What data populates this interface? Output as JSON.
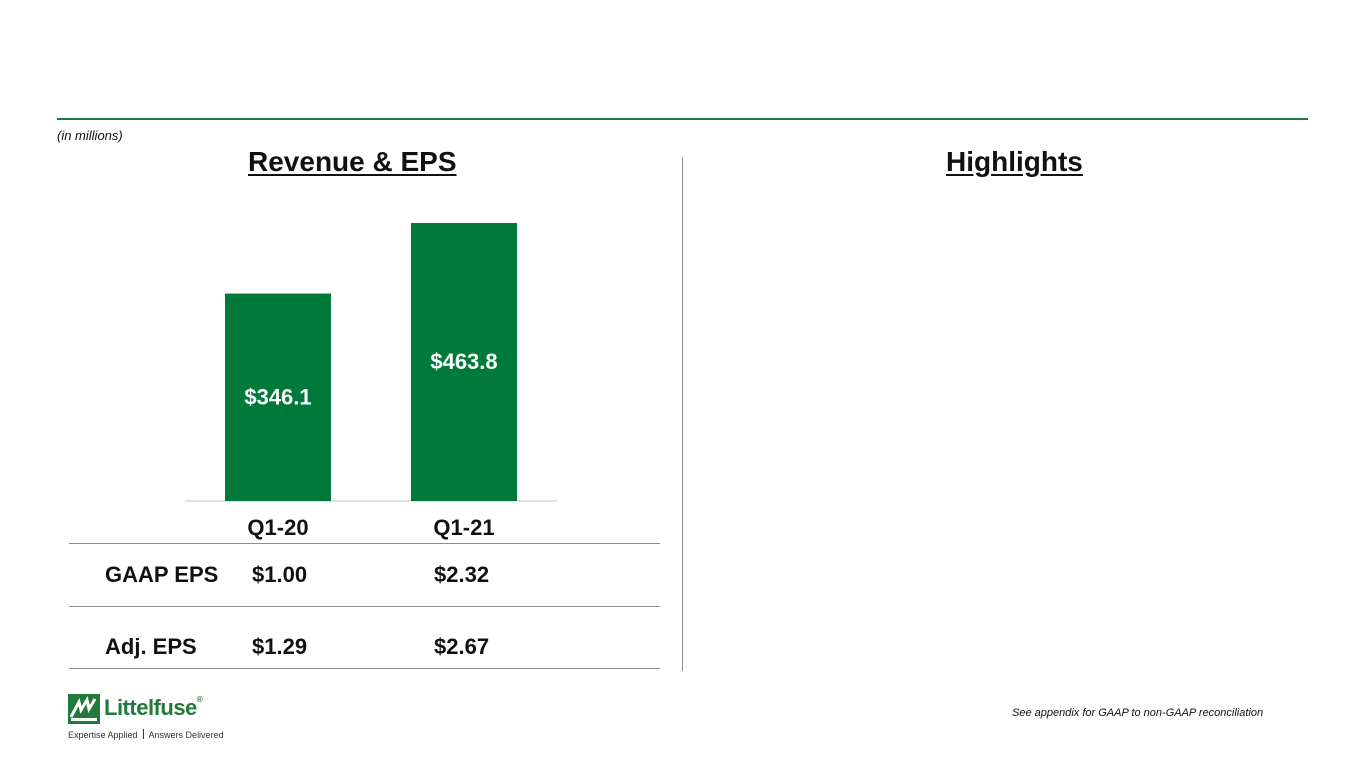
{
  "units_note": "(in millions)",
  "left_title": "Revenue & EPS",
  "right_title": "Highlights",
  "colors": {
    "bar": "#007a3a",
    "rule": "#1f7a3b",
    "bar_label": "#ffffff"
  },
  "chart_data": {
    "type": "bar",
    "categories": [
      "Q1-20",
      "Q1-21"
    ],
    "values": [
      346.1,
      463.8
    ],
    "value_labels": [
      "$346.1",
      "$463.8"
    ],
    "title": "Revenue & EPS",
    "xlabel": "",
    "ylabel": "",
    "ylim": [
      0,
      500
    ],
    "grid": false
  },
  "eps_table": {
    "rows": [
      {
        "label": "GAAP EPS",
        "values": [
          "$1.00",
          "$2.32"
        ]
      },
      {
        "label": "Adj. EPS",
        "values": [
          "$1.29",
          "$2.67"
        ]
      }
    ]
  },
  "footnote": "See appendix for GAAP to non-GAAP reconciliation",
  "logo": {
    "wordmark": "Littelfuse",
    "registered": "®",
    "tagline_left": "Expertise Applied",
    "tagline_right": "Answers Delivered",
    "icon": "littelfuse-logo-icon"
  }
}
